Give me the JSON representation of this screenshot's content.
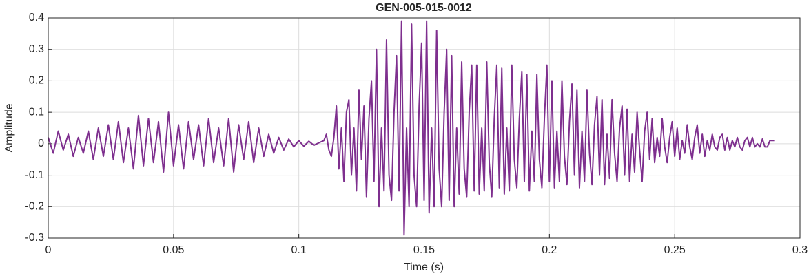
{
  "chart_data": {
    "type": "line",
    "title": "GEN-005-015-0012",
    "xlabel": "Time (s)",
    "ylabel": "Amplitude",
    "color": "#7E2F8E",
    "grid": true,
    "xlim": [
      0,
      0.3
    ],
    "xticks": [
      0,
      0.05,
      0.1,
      0.15,
      0.2,
      0.25,
      0.3
    ],
    "ylim": [
      -0.3,
      0.4
    ],
    "yticks": [
      -0.3,
      -0.2,
      -0.1,
      0,
      0.1,
      0.2,
      0.3,
      0.4
    ],
    "x": [
      0,
      0.002,
      0.004,
      0.006,
      0.008,
      0.01,
      0.012,
      0.014,
      0.016,
      0.018,
      0.02,
      0.022,
      0.024,
      0.026,
      0.028,
      0.03,
      0.032,
      0.034,
      0.036,
      0.038,
      0.04,
      0.042,
      0.044,
      0.046,
      0.048,
      0.05,
      0.052,
      0.054,
      0.056,
      0.058,
      0.06,
      0.062,
      0.064,
      0.066,
      0.068,
      0.07,
      0.072,
      0.074,
      0.076,
      0.078,
      0.08,
      0.082,
      0.084,
      0.086,
      0.088,
      0.09,
      0.092,
      0.094,
      0.096,
      0.098,
      0.1,
      0.102,
      0.104,
      0.106,
      0.108,
      0.11,
      0.111,
      0.112,
      0.113,
      0.114,
      0.115,
      0.116,
      0.117,
      0.118,
      0.119,
      0.12,
      0.121,
      0.122,
      0.123,
      0.124,
      0.125,
      0.126,
      0.127,
      0.128,
      0.129,
      0.13,
      0.131,
      0.132,
      0.133,
      0.134,
      0.135,
      0.136,
      0.137,
      0.138,
      0.139,
      0.14,
      0.141,
      0.142,
      0.143,
      0.144,
      0.145,
      0.146,
      0.147,
      0.148,
      0.149,
      0.15,
      0.151,
      0.152,
      0.153,
      0.154,
      0.155,
      0.156,
      0.157,
      0.158,
      0.159,
      0.16,
      0.161,
      0.162,
      0.163,
      0.164,
      0.165,
      0.166,
      0.167,
      0.168,
      0.169,
      0.17,
      0.171,
      0.172,
      0.173,
      0.174,
      0.175,
      0.176,
      0.177,
      0.178,
      0.179,
      0.18,
      0.181,
      0.182,
      0.183,
      0.184,
      0.185,
      0.186,
      0.187,
      0.188,
      0.189,
      0.19,
      0.191,
      0.192,
      0.193,
      0.194,
      0.195,
      0.196,
      0.197,
      0.198,
      0.199,
      0.2,
      0.201,
      0.202,
      0.203,
      0.204,
      0.205,
      0.206,
      0.207,
      0.208,
      0.209,
      0.21,
      0.211,
      0.212,
      0.213,
      0.214,
      0.215,
      0.216,
      0.217,
      0.218,
      0.219,
      0.22,
      0.221,
      0.222,
      0.223,
      0.224,
      0.225,
      0.226,
      0.227,
      0.228,
      0.229,
      0.23,
      0.231,
      0.232,
      0.233,
      0.234,
      0.235,
      0.236,
      0.237,
      0.238,
      0.239,
      0.24,
      0.241,
      0.242,
      0.243,
      0.244,
      0.245,
      0.246,
      0.247,
      0.248,
      0.249,
      0.25,
      0.251,
      0.252,
      0.253,
      0.254,
      0.255,
      0.256,
      0.257,
      0.258,
      0.259,
      0.26,
      0.261,
      0.262,
      0.263,
      0.264,
      0.265,
      0.266,
      0.267,
      0.268,
      0.269,
      0.27,
      0.271,
      0.272,
      0.273,
      0.274,
      0.275,
      0.276,
      0.277,
      0.278,
      0.279,
      0.28,
      0.281,
      0.282,
      0.283,
      0.284,
      0.285,
      0.286,
      0.287,
      0.288,
      0.289,
      0.29
    ],
    "values": [
      0.02,
      -0.03,
      0.04,
      -0.02,
      0.03,
      -0.04,
      0.02,
      -0.03,
      0.04,
      -0.05,
      0.05,
      -0.04,
      0.06,
      -0.05,
      0.07,
      -0.06,
      0.05,
      -0.08,
      0.09,
      -0.07,
      0.08,
      -0.06,
      0.07,
      -0.09,
      0.1,
      -0.07,
      0.06,
      -0.08,
      0.07,
      -0.05,
      0.06,
      -0.07,
      0.08,
      -0.06,
      0.05,
      -0.07,
      0.08,
      -0.09,
      0.06,
      -0.05,
      0.07,
      -0.06,
      0.05,
      -0.04,
      0.03,
      -0.03,
      0.02,
      -0.02,
      0.015,
      -0.01,
      0.01,
      -0.008,
      0.008,
      -0.005,
      0.003,
      0.01,
      0.03,
      -0.02,
      -0.04,
      0.02,
      0.12,
      -0.08,
      0.05,
      -0.12,
      0.1,
      0.14,
      -0.1,
      0.05,
      -0.15,
      0.17,
      -0.05,
      0.12,
      -0.17,
      0.08,
      0.2,
      -0.12,
      0.3,
      -0.2,
      0.05,
      -0.15,
      0.33,
      -0.1,
      -0.18,
      0.1,
      0.28,
      -0.15,
      0.39,
      -0.29,
      0.05,
      -0.2,
      0.38,
      -0.1,
      -0.2,
      0.12,
      0.32,
      -0.18,
      0.39,
      -0.22,
      0.05,
      -0.2,
      0.36,
      -0.08,
      -0.2,
      0.1,
      0.3,
      -0.18,
      0.28,
      -0.2,
      0.05,
      -0.16,
      0.26,
      -0.08,
      -0.17,
      0.1,
      0.25,
      -0.15,
      0.25,
      -0.16,
      0.05,
      -0.15,
      0.26,
      -0.06,
      -0.17,
      0.08,
      0.25,
      -0.14,
      0.24,
      -0.16,
      0.05,
      -0.15,
      0.25,
      -0.05,
      -0.14,
      0.08,
      0.23,
      -0.12,
      0.22,
      -0.15,
      0.04,
      -0.12,
      0.22,
      -0.05,
      -0.14,
      0.08,
      0.25,
      -0.12,
      0.2,
      -0.14,
      0.04,
      -0.12,
      0.2,
      -0.04,
      -0.13,
      0.07,
      0.19,
      -0.1,
      0.17,
      -0.14,
      0.04,
      -0.12,
      0.17,
      -0.03,
      -0.13,
      0.06,
      0.15,
      -0.1,
      0.14,
      -0.13,
      0.03,
      -0.11,
      0.14,
      -0.03,
      -0.12,
      0.05,
      0.12,
      -0.1,
      0.11,
      -0.12,
      0.03,
      -0.09,
      0.1,
      -0.02,
      -0.12,
      0.04,
      0.1,
      -0.05,
      0.08,
      -0.06,
      0.02,
      -0.04,
      0.08,
      -0.01,
      -0.06,
      0.02,
      0.07,
      -0.04,
      0.05,
      -0.05,
      0.01,
      -0.03,
      0.06,
      -0.01,
      -0.05,
      0.02,
      0.06,
      -0.03,
      0.03,
      -0.04,
      0.01,
      -0.02,
      0.03,
      -0.01,
      -0.02,
      0.02,
      0.03,
      -0.02,
      0.02,
      -0.02,
      0.01,
      -0.01,
      0.02,
      -0.01,
      -0.02,
      0.01,
      0.02,
      -0.01,
      0.02,
      -0.01,
      0,
      -0.01,
      0.015,
      -0.01,
      -0.01,
      0.01,
      0.01,
      0.01
    ]
  }
}
